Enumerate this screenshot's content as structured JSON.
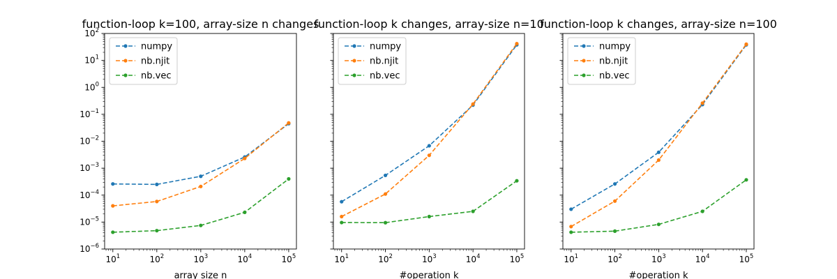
{
  "colors": {
    "numpy": "#1f77b4",
    "nb.njit": "#ff7f0e",
    "nb.vec": "#2ca02c"
  },
  "chart_data": [
    {
      "type": "line",
      "title": "function-loop k=100, array-size n changes",
      "xlabel": "array size n",
      "ylabel": "",
      "x_scale": "log",
      "y_scale": "log",
      "xlim": [
        6.5,
        150000
      ],
      "ylim": [
        1e-06,
        100
      ],
      "grid": false,
      "legend": "upper left",
      "show_y_ticklabels": true,
      "x": [
        10,
        100,
        1000,
        10000,
        100000
      ],
      "x_ticks": [
        "10^1",
        "10^2",
        "10^3",
        "10^4",
        "10^5"
      ],
      "y_ticks": [
        "10^-6",
        "10^-5",
        "10^-4",
        "10^-3",
        "10^-2",
        "10^-1",
        "10^0",
        "10^1",
        "10^2"
      ],
      "series": [
        {
          "name": "numpy",
          "values": [
            0.00026,
            0.00025,
            0.0005,
            0.0026,
            0.045
          ]
        },
        {
          "name": "nb.njit",
          "values": [
            4e-05,
            5.8e-05,
            0.00021,
            0.0023,
            0.048
          ]
        },
        {
          "name": "nb.vec",
          "values": [
            4.2e-06,
            4.8e-06,
            7.5e-06,
            2.3e-05,
            0.0004
          ]
        }
      ]
    },
    {
      "type": "line",
      "title": "function-loop k changes, array-size n=10",
      "xlabel": "#operation k",
      "ylabel": "",
      "x_scale": "log",
      "y_scale": "log",
      "xlim": [
        6.5,
        150000
      ],
      "ylim": [
        1e-06,
        100
      ],
      "grid": false,
      "legend": "upper left",
      "show_y_ticklabels": false,
      "x": [
        10,
        100,
        1000,
        10000,
        100000
      ],
      "x_ticks": [
        "10^1",
        "10^2",
        "10^3",
        "10^4",
        "10^5"
      ],
      "y_ticks": [],
      "series": [
        {
          "name": "numpy",
          "values": [
            5.7e-05,
            0.00054,
            0.0068,
            0.22,
            38
          ]
        },
        {
          "name": "nb.njit",
          "values": [
            1.6e-05,
            0.00011,
            0.003,
            0.24,
            42
          ]
        },
        {
          "name": "nb.vec",
          "values": [
            9.6e-06,
            9.5e-06,
            1.6e-05,
            2.5e-05,
            0.00034
          ]
        }
      ]
    },
    {
      "type": "line",
      "title": "function-loop k changes, array-size n=100",
      "xlabel": "#operation k",
      "ylabel": "",
      "x_scale": "log",
      "y_scale": "log",
      "xlim": [
        6.5,
        150000
      ],
      "ylim": [
        1e-06,
        100
      ],
      "grid": false,
      "legend": "upper left",
      "show_y_ticklabels": false,
      "x": [
        10,
        100,
        1000,
        10000,
        100000
      ],
      "x_ticks": [
        "10^1",
        "10^2",
        "10^3",
        "10^4",
        "10^5"
      ],
      "y_ticks": [],
      "series": [
        {
          "name": "numpy",
          "values": [
            3e-05,
            0.00026,
            0.0039,
            0.23,
            38
          ]
        },
        {
          "name": "nb.njit",
          "values": [
            6.8e-06,
            6e-05,
            0.002,
            0.26,
            40
          ]
        },
        {
          "name": "nb.vec",
          "values": [
            4.2e-06,
            4.6e-06,
            8.2e-06,
            2.5e-05,
            0.00037
          ]
        }
      ]
    }
  ]
}
